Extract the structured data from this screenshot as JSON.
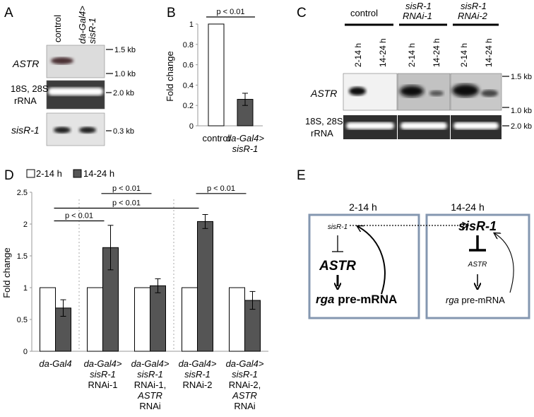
{
  "panels": {
    "A": {
      "label": "A",
      "lanes": [
        "control",
        "da-Gal4>",
        "sisR-1"
      ],
      "rows": [
        "ASTR",
        "18S, 28S",
        "rRNA",
        "sisR-1"
      ],
      "markers": [
        "1.5 kb",
        "1.0 kb",
        "2.0 kb",
        "0.3 kb"
      ]
    },
    "B": {
      "label": "B"
    },
    "C": {
      "label": "C",
      "groups": [
        "control",
        "sisR-1",
        "RNAi-1",
        "sisR-1",
        "RNAi-2"
      ],
      "lanes": [
        "2-14 h",
        "14-24 h",
        "2-14 h",
        "14-24 h",
        "2-14 h",
        "14-24 h"
      ],
      "rows": [
        "ASTR",
        "18S, 28S",
        "rRNA"
      ],
      "markers": [
        "1.5 kb",
        "1.0 kb",
        "2.0 kb"
      ]
    },
    "D": {
      "label": "D"
    },
    "E": {
      "label": "E",
      "box1": {
        "title": "2-14 h",
        "sis": "sisR-1",
        "astr": "ASTR",
        "rga": "rga",
        "premrna": " pre-mRNA"
      },
      "box2": {
        "title": "14-24 h",
        "sis": "sisR-1",
        "astr": "ASTR",
        "rga": "rga",
        "premrna": " pre-mRNA"
      }
    }
  },
  "chart_data": [
    {
      "type": "bar",
      "panel": "B",
      "ylabel": "Fold change",
      "ylim": [
        0,
        1
      ],
      "yticks": [
        "0",
        "0.2",
        "0.4",
        "0.6",
        "0.8",
        "1"
      ],
      "categories": [
        [
          "control"
        ],
        [
          "da-Gal4>",
          "sisR-1"
        ]
      ],
      "values": [
        1.0,
        0.26
      ],
      "errors": [
        0,
        0.06
      ],
      "colors": [
        "#ffffff",
        "#555555"
      ],
      "significance": [
        {
          "text": "p < 0.01",
          "from": 0,
          "to": 1
        }
      ]
    },
    {
      "type": "bar",
      "panel": "D",
      "ylabel": "Fold change",
      "ylim": [
        0,
        2.5
      ],
      "yticks": [
        "0",
        "0.5",
        "1",
        "1.5",
        "2",
        "2.5"
      ],
      "legend": {
        "position": "top-left"
      },
      "categories": [
        [
          "da-Gal4"
        ],
        [
          "da-Gal4>",
          "sisR-1",
          "RNAi-1"
        ],
        [
          "da-Gal4>",
          "sisR-1",
          "RNAi-1,",
          "ASTR",
          "RNAi"
        ],
        [
          "da-Gal4>",
          "sisR-1",
          "RNAi-2"
        ],
        [
          "da-Gal4>",
          "sisR-1",
          "RNAi-2,",
          "ASTR",
          "RNAi"
        ]
      ],
      "series": [
        {
          "name": "2-14 h",
          "color": "#ffffff",
          "values": [
            1,
            1,
            1,
            1,
            1
          ],
          "errors": [
            0,
            0,
            0,
            0,
            0
          ]
        },
        {
          "name": "14-24 h",
          "color": "#555555",
          "values": [
            0.68,
            1.63,
            1.03,
            2.04,
            0.8
          ],
          "errors": [
            0.13,
            0.35,
            0.11,
            0.11,
            0.14
          ]
        }
      ],
      "significance": [
        {
          "text": "p < 0.01",
          "from": 0,
          "to": 1,
          "y": 2.05
        },
        {
          "text": "p < 0.01",
          "from": 0,
          "to": 3,
          "y": 2.25
        },
        {
          "text": "p < 0.01",
          "from": 1,
          "to": 2,
          "y": 2.48
        },
        {
          "text": "p < 0.01",
          "from": 3,
          "to": 4,
          "y": 2.48
        }
      ]
    }
  ]
}
